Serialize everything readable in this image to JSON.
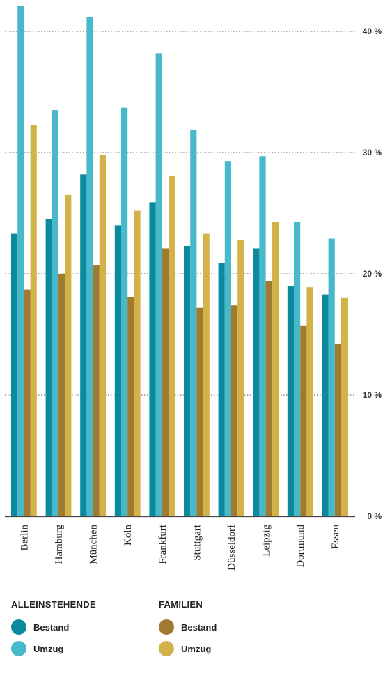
{
  "chart_data": {
    "type": "bar",
    "categories": [
      "Berlin",
      "Hamburg",
      "München",
      "Köln",
      "Frankfurt",
      "Stuttgart",
      "Düsseldorf",
      "Leipzig",
      "Dortmund",
      "Essen"
    ],
    "series": [
      {
        "name": "Bestand",
        "group": "ALLEINSTEHENDE",
        "color": "#0a8a9c",
        "values": [
          23.3,
          24.5,
          28.2,
          24.0,
          25.9,
          22.3,
          20.9,
          22.1,
          19.0,
          18.3
        ]
      },
      {
        "name": "Umzug",
        "group": "ALLEINSTEHENDE",
        "color": "#48b8cb",
        "values": [
          42.1,
          33.5,
          41.2,
          33.7,
          38.2,
          31.9,
          29.3,
          29.7,
          24.3,
          22.9
        ]
      },
      {
        "name": "Bestand",
        "group": "FAMILIEN",
        "color": "#a07a2e",
        "values": [
          18.7,
          20.0,
          20.7,
          18.1,
          22.1,
          17.2,
          17.4,
          19.4,
          15.7,
          14.2
        ]
      },
      {
        "name": "Umzug",
        "group": "FAMILIEN",
        "color": "#d4b24a",
        "values": [
          32.3,
          26.5,
          29.8,
          25.2,
          28.1,
          23.3,
          22.8,
          24.3,
          18.9,
          18.0
        ]
      }
    ],
    "yticks": [
      "0 %",
      "10 %",
      "20 %",
      "30 %",
      "40 %"
    ],
    "ylim": [
      0,
      42.5
    ],
    "grid": true,
    "legend_position": "bottom"
  },
  "legend": {
    "groups": [
      {
        "title": "ALLEINSTEHENDE",
        "items": [
          {
            "label": "Bestand",
            "color": "#0a8a9c"
          },
          {
            "label": "Umzug",
            "color": "#48b8cb"
          }
        ]
      },
      {
        "title": "FAMILIEN",
        "items": [
          {
            "label": "Bestand",
            "color": "#a07a2e"
          },
          {
            "label": "Umzug",
            "color": "#d4b24a"
          }
        ]
      }
    ]
  }
}
